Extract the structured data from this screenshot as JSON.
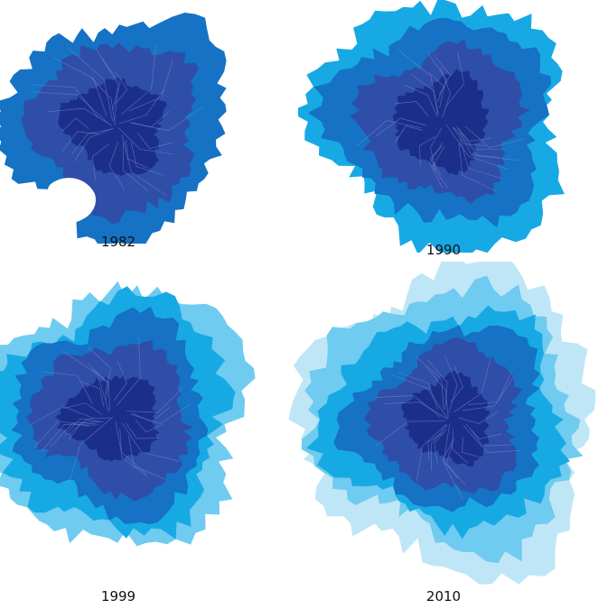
{
  "panels": [
    {
      "year": "1982",
      "bands": 3
    },
    {
      "year": "1990",
      "bands": 4
    },
    {
      "year": "1999",
      "bands": 5
    },
    {
      "year": "2010",
      "bands": 6
    }
  ],
  "colors": {
    "core": "#1b2f8a",
    "inner": "#2e4ea8",
    "ring_1": "#1572c4",
    "ring_2": "#17a9e4",
    "ring_3": "#6fcbf0",
    "ring_4": "#bfe6f7",
    "commune_border": "#8a8fd0",
    "background": "#ffffff"
  }
}
